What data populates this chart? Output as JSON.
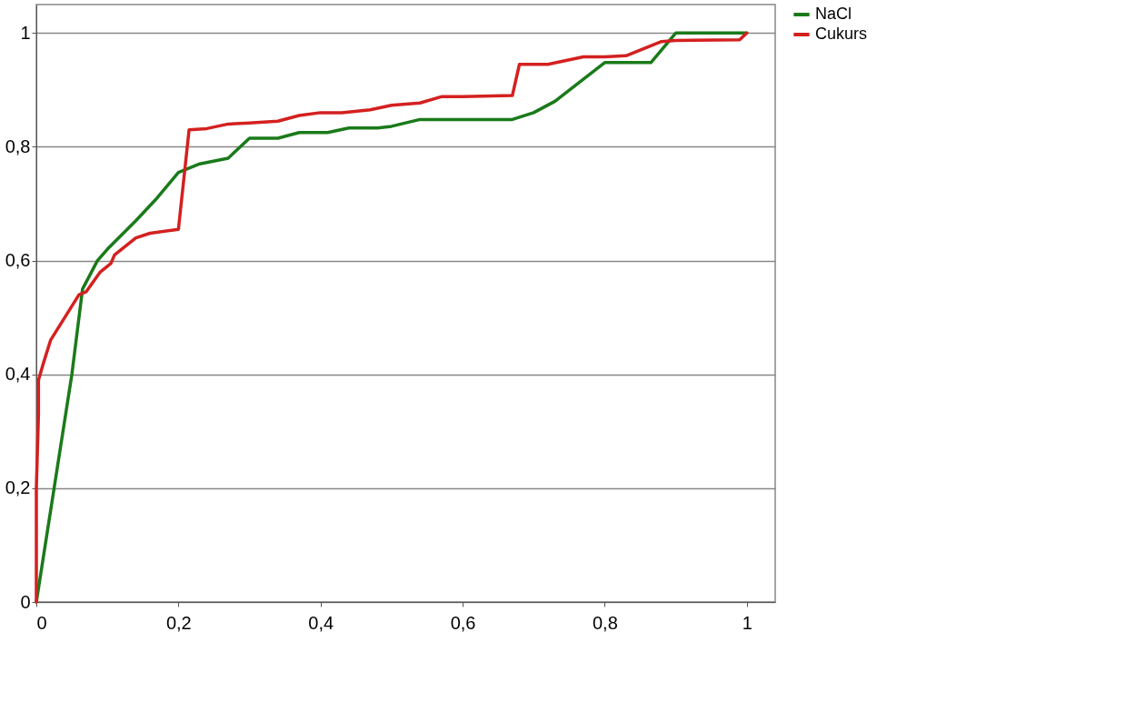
{
  "chart_data": {
    "type": "line",
    "xlim": [
      0,
      1.04
    ],
    "ylim": [
      0,
      1.05
    ],
    "xticks": [
      0,
      {
        "value": 0.2,
        "label": "0,2"
      },
      {
        "value": 0.4,
        "label": "0,4"
      },
      {
        "value": 0.6,
        "label": "0,6"
      },
      {
        "value": 0.8,
        "label": "0,8"
      },
      1
    ],
    "yticks": [
      0,
      {
        "value": 0.2,
        "label": "0,2"
      },
      {
        "value": 0.4,
        "label": "0,4"
      },
      {
        "value": 0.6,
        "label": "0,6"
      },
      {
        "value": 0.8,
        "label": "0,8"
      },
      1
    ],
    "grid": "y",
    "legend": "right",
    "line_style": "solid",
    "marker": "none",
    "series": [
      {
        "name": "NaCl",
        "color": "#1a7a1a",
        "x": [
          0,
          0.05,
          0.065,
          0.086,
          0.1,
          0.14,
          0.17,
          0.2,
          0.23,
          0.27,
          0.3,
          0.34,
          0.37,
          0.41,
          0.44,
          0.48,
          0.5,
          0.54,
          0.67,
          0.7,
          0.73,
          0.8,
          0.865,
          0.9,
          1.0
        ],
        "values": [
          0,
          0.4,
          0.55,
          0.6,
          0.62,
          0.67,
          0.71,
          0.755,
          0.77,
          0.78,
          0.815,
          0.815,
          0.825,
          0.825,
          0.833,
          0.833,
          0.836,
          0.848,
          0.848,
          0.86,
          0.88,
          0.948,
          0.948,
          1.0,
          1.0
        ]
      },
      {
        "name": "Cukurs",
        "color": "#d42020",
        "x": [
          0,
          0,
          0.003,
          0.003,
          0.01,
          0.02,
          0.04,
          0.06,
          0.07,
          0.09,
          0.105,
          0.11,
          0.14,
          0.16,
          0.2,
          0.215,
          0.24,
          0.27,
          0.3,
          0.34,
          0.37,
          0.4,
          0.43,
          0.47,
          0.5,
          0.54,
          0.57,
          0.6,
          0.67,
          0.68,
          0.72,
          0.77,
          0.8,
          0.83,
          0.88,
          0.9,
          0.99,
          1.0
        ],
        "values": [
          0,
          0.2,
          0.33,
          0.39,
          0.42,
          0.46,
          0.5,
          0.54,
          0.545,
          0.58,
          0.595,
          0.61,
          0.64,
          0.648,
          0.655,
          0.83,
          0.832,
          0.84,
          0.842,
          0.845,
          0.855,
          0.86,
          0.86,
          0.865,
          0.873,
          0.877,
          0.888,
          0.888,
          0.89,
          0.945,
          0.945,
          0.958,
          0.958,
          0.96,
          0.985,
          0.987,
          0.988,
          1.0
        ]
      }
    ]
  }
}
